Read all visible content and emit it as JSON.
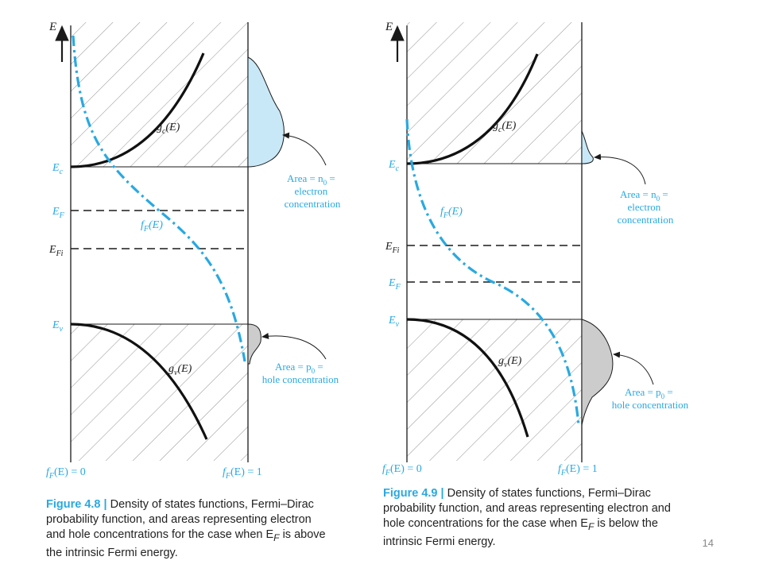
{
  "left_figure": {
    "axis_label": "E",
    "levels": {
      "ec": "E",
      "ec_sub": "c",
      "ef": "E",
      "ef_sub": "F",
      "efi": "E",
      "efi_sub": "Fi",
      "ev": "E",
      "ev_sub": "v"
    },
    "curves": {
      "gc": "g",
      "gc_sub": "c",
      "gc_arg": "(E)",
      "gv": "g",
      "gv_sub": "v",
      "gv_arg": "(E)",
      "ff": "f",
      "ff_sub": "F",
      "ff_arg": "(E)"
    },
    "bottom_left_label": "f",
    "bottom_left_sub": "F",
    "bottom_left_rest": "(E) = 0",
    "bottom_right_label": "f",
    "bottom_right_sub": "F",
    "bottom_right_rest": "(E) = 1",
    "electron_area": [
      "Area = n",
      "0",
      " =",
      "electron",
      "concentration"
    ],
    "hole_area": [
      "Area = p",
      "0",
      " =",
      "hole concentration"
    ],
    "caption_head": "Figure 4.8",
    "caption_sep": " | ",
    "caption_lines": [
      "Density of states functions, Fermi–Dirac",
      "probability function, and areas representing electron",
      "and hole concentrations for the case when E",
      "the intrinsic Fermi energy."
    ],
    "caption_line3_sub": "F",
    "caption_line3_tail": " is above"
  },
  "right_figure": {
    "axis_label": "E",
    "levels": {
      "ec": "E",
      "ec_sub": "c",
      "efi": "E",
      "efi_sub": "Fi",
      "ef": "E",
      "ef_sub": "F",
      "ev": "E",
      "ev_sub": "v"
    },
    "curves": {
      "gc": "g",
      "gc_sub": "c",
      "gc_arg": "(E)",
      "gv": "g",
      "gv_sub": "v",
      "gv_arg": "(E)",
      "ff": "f",
      "ff_sub": "F",
      "ff_arg": "(E)"
    },
    "bottom_left_label": "f",
    "bottom_left_sub": "F",
    "bottom_left_rest": "(E) = 0",
    "bottom_right_label": "f",
    "bottom_right_sub": "F",
    "bottom_right_rest": "(E) = 1",
    "electron_area": [
      "Area = n",
      "0",
      " =",
      "electron",
      "concentration"
    ],
    "hole_area": [
      "Area = p",
      "0",
      " =",
      "hole concentration"
    ],
    "caption_head": "Figure 4.9",
    "caption_sep": " | ",
    "caption_lines": [
      "Density of states functions, Fermi–Dirac",
      "probability function, and areas representing electron and",
      "hole concentrations for the case when E",
      "intrinsic Fermi energy."
    ],
    "caption_line3_sub": "F",
    "caption_line3_tail": " is below the"
  },
  "page_number": "14",
  "colors": {
    "accent": "#29a9e1",
    "electron_fill": "#c9e8f7",
    "hole_fill": "#cccccc",
    "hatch": "#9a9a9a"
  }
}
